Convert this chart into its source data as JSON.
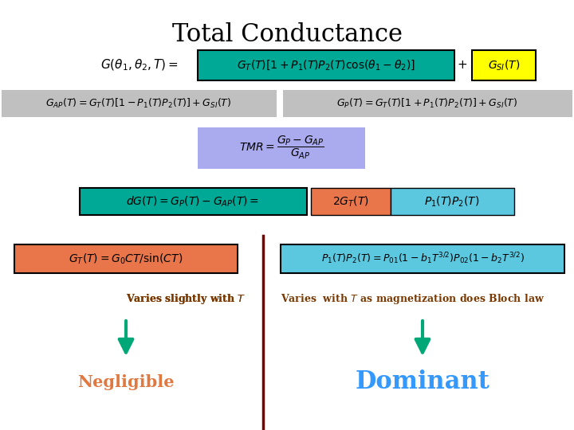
{
  "title": "Total Conductance",
  "title_fontsize": 22,
  "background_color": "#ffffff",
  "teal_color": "#00A896",
  "yellow_color": "#FFFF00",
  "orange_color": "#E8764A",
  "light_blue_color": "#5BC8E0",
  "light_purple_color": "#AAAAEE",
  "gray_color": "#C0C0C0",
  "dark_red_line": "#7A0000",
  "arrow_color": "#00A878",
  "negligible_color": "#E07840",
  "dominant_color": "#3399FF",
  "label_color": "#7A3800",
  "text_left": "Varies slightly with $T$",
  "text_right": "Varies  with $T$ as magnetization does Bloch law",
  "negligible": "Negligible",
  "dominant": "Dominant"
}
